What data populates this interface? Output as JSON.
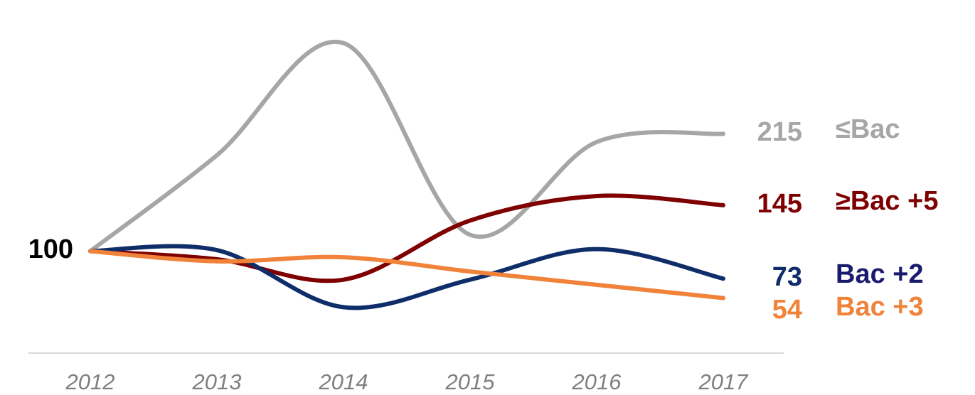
{
  "chart_data": {
    "type": "line",
    "categories": [
      "2012",
      "2013",
      "2014",
      "2015",
      "2016",
      "2017"
    ],
    "ylim": [
      0,
      340
    ],
    "series": [
      {
        "name": "≤Bac",
        "color": "#a6a6a6",
        "values": [
          100,
          194,
          304,
          116,
          207,
          215
        ]
      },
      {
        "name": "≥Bac +5",
        "color": "#7f0000",
        "values": [
          100,
          92,
          72,
          130,
          154,
          145
        ]
      },
      {
        "name": "Bac +2",
        "color": "#0f2d69",
        "values": [
          100,
          101,
          45,
          72,
          102,
          73
        ]
      },
      {
        "name": "Bac +3",
        "color": "#f0823a",
        "values": [
          100,
          90,
          94,
          80,
          67,
          54
        ]
      }
    ]
  }
}
